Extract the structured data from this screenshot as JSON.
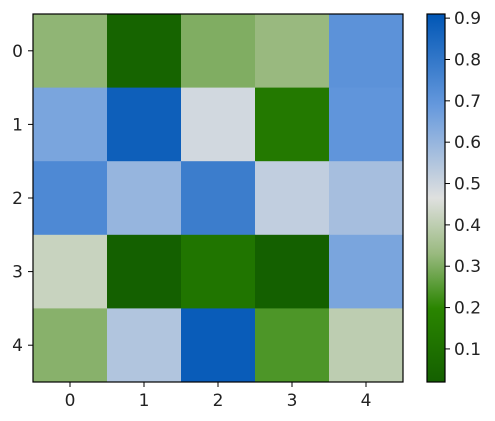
{
  "chart_data": {
    "type": "heatmap",
    "title": "",
    "xlabel": "",
    "ylabel": "",
    "x_categories": [
      "0",
      "1",
      "2",
      "3",
      "4"
    ],
    "y_categories": [
      "0",
      "1",
      "2",
      "3",
      "4"
    ],
    "values": [
      [
        0.32,
        0.04,
        0.3,
        0.33,
        0.71
      ],
      [
        0.65,
        0.88,
        0.49,
        0.14,
        0.7
      ],
      [
        0.74,
        0.6,
        0.78,
        0.52,
        0.57
      ],
      [
        0.42,
        0.02,
        0.12,
        0.01,
        0.65
      ],
      [
        0.31,
        0.55,
        0.89,
        0.24,
        0.4
      ]
    ],
    "colorbar": {
      "min": 0.02,
      "max": 0.91,
      "ticks": [
        0.1,
        0.2,
        0.3,
        0.4,
        0.5,
        0.6,
        0.7,
        0.8,
        0.9
      ],
      "tick_labels": [
        "0.1",
        "0.2",
        "0.3",
        "0.4",
        "0.5",
        "0.6",
        "0.7",
        "0.8",
        "0.9"
      ],
      "colormap": [
        "#146000",
        "#2a8500",
        "#9aba80",
        "#dfe0df",
        "#6699dd",
        "#0056b5"
      ]
    },
    "grid": false
  }
}
